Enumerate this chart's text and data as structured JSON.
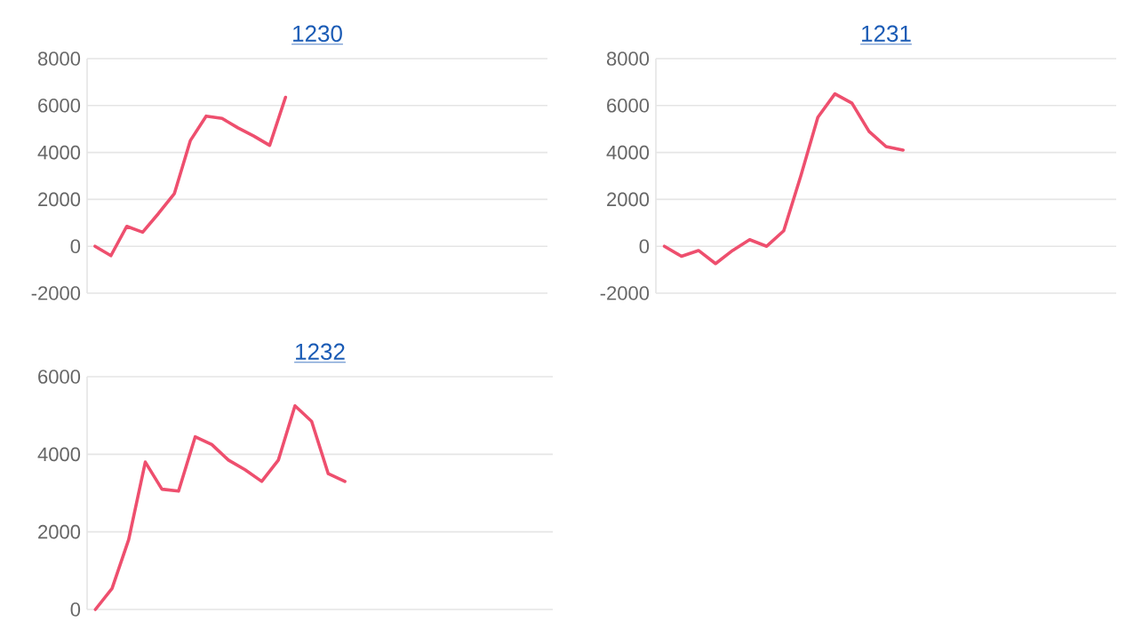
{
  "chart_data": [
    {
      "type": "line",
      "title": "1230",
      "categories": [
        null,
        null,
        null,
        null,
        null,
        null,
        null,
        null,
        null,
        null,
        null,
        null,
        null,
        null,
        null,
        null,
        null,
        null,
        null,
        null,
        null,
        null,
        null,
        null,
        null,
        null,
        null,
        null,
        null
      ],
      "series": [
        {
          "color": "#ee4f6e",
          "values": [
            0,
            -400,
            850,
            600,
            1400,
            2250,
            4500,
            5550,
            5450,
            5050,
            4700,
            4300,
            6350,
            null,
            null,
            null,
            null,
            null,
            null,
            null,
            null,
            null,
            null,
            null,
            null,
            null,
            null,
            null,
            null
          ]
        }
      ],
      "ylim": [
        -2000,
        8000
      ],
      "yticks": [
        -2000,
        0,
        2000,
        4000,
        6000,
        8000
      ],
      "grid": "y",
      "tick_labels": "y",
      "marker": "none",
      "line_style": "solid"
    },
    {
      "type": "line",
      "title": "1231",
      "categories": [
        null,
        null,
        null,
        null,
        null,
        null,
        null,
        null,
        null,
        null,
        null,
        null,
        null,
        null,
        null,
        null,
        null,
        null,
        null,
        null,
        null,
        null,
        null,
        null,
        null,
        null,
        null
      ],
      "series": [
        {
          "color": "#ee4f6e",
          "values": [
            0,
            -430,
            -180,
            -740,
            -180,
            280,
            0,
            660,
            3000,
            5500,
            6500,
            6100,
            4900,
            4250,
            4100,
            null,
            null,
            null,
            null,
            null,
            null,
            null,
            null,
            null,
            null,
            null,
            null
          ]
        }
      ],
      "ylim": [
        -2000,
        8000
      ],
      "yticks": [
        -2000,
        0,
        2000,
        4000,
        6000,
        8000
      ],
      "grid": "y",
      "tick_labels": "y",
      "marker": "none",
      "line_style": "solid"
    },
    {
      "type": "line",
      "title": "1232",
      "categories": [
        null,
        null,
        null,
        null,
        null,
        null,
        null,
        null,
        null,
        null,
        null,
        null,
        null,
        null,
        null,
        null,
        null,
        null,
        null,
        null,
        null,
        null,
        null,
        null,
        null,
        null,
        null,
        null
      ],
      "series": [
        {
          "color": "#ee4f6e",
          "values": [
            0,
            540,
            1800,
            3800,
            3100,
            3050,
            4450,
            4250,
            3850,
            3600,
            3300,
            3850,
            5250,
            4850,
            3500,
            3300,
            null,
            null,
            null,
            null,
            null,
            null,
            null,
            null,
            null,
            null,
            null,
            null
          ]
        }
      ],
      "ylim": [
        0,
        6000
      ],
      "yticks": [
        0,
        2000,
        4000,
        6000
      ],
      "grid": "y",
      "tick_labels": "y",
      "marker": "none",
      "line_style": "solid"
    }
  ]
}
